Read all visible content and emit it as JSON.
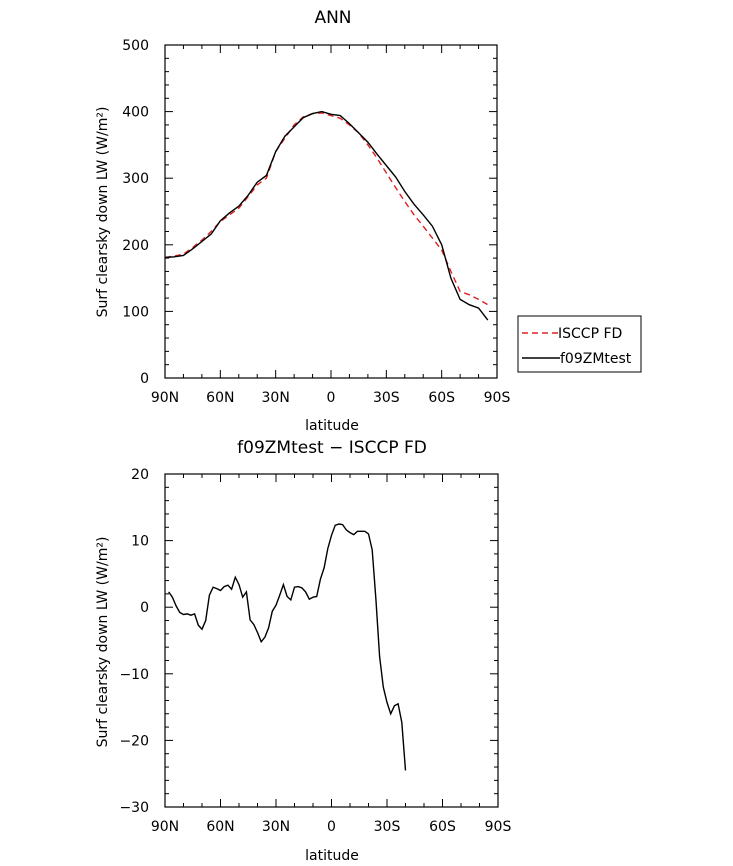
{
  "chart_data": [
    {
      "type": "line",
      "title": "ANN",
      "xlabel": "latitude",
      "ylabel": "Surf clearsky down LW (W/m²)",
      "xlim": [
        -90,
        90
      ],
      "ylim": [
        0,
        500
      ],
      "xticks": [
        -90,
        -60,
        -30,
        0,
        30,
        60,
        90
      ],
      "xtick_labels": [
        "90N",
        "60N",
        "30N",
        "0",
        "30S",
        "60S",
        "90S"
      ],
      "yticks": [
        0,
        100,
        200,
        300,
        400,
        500
      ],
      "ytick_labels": [
        "0",
        "100",
        "200",
        "300",
        "400",
        "500"
      ],
      "x": [
        -90,
        -85,
        -80,
        -75,
        -70,
        -65,
        -60,
        -55,
        -50,
        -45,
        -40,
        -35,
        -30,
        -25,
        -20,
        -15,
        -10,
        -5,
        0,
        5,
        10,
        15,
        20,
        25,
        30,
        35,
        40,
        45,
        50,
        55,
        60,
        65,
        70,
        75,
        80,
        85,
        90
      ],
      "series": [
        {
          "name": "ISCCP FD",
          "color": "#e02020",
          "dash": "dashed",
          "values": [
            181,
            183,
            186,
            196,
            207,
            220,
            235,
            245,
            255,
            272,
            290,
            300,
            340,
            360,
            380,
            392,
            397,
            398,
            394,
            390,
            380,
            368,
            350,
            330,
            308,
            286,
            265,
            245,
            228,
            210,
            192,
            160,
            130,
            125,
            118,
            110,
            null
          ]
        },
        {
          "name": "f09ZMtest",
          "color": "#000000",
          "dash": "solid",
          "values": [
            181,
            182,
            184,
            194,
            205,
            216,
            236,
            248,
            258,
            274,
            294,
            304,
            340,
            363,
            377,
            391,
            397,
            400,
            396,
            394,
            382,
            368,
            354,
            336,
            319,
            302,
            280,
            261,
            245,
            228,
            200,
            150,
            118,
            110,
            105,
            87,
            null
          ]
        }
      ],
      "legend": "right"
    },
    {
      "type": "line",
      "title": "f09ZMtest − ISCCP FD",
      "xlabel": "latitude",
      "ylabel": "Surf clearsky down LW (W/m²)",
      "xlim": [
        -90,
        90
      ],
      "ylim": [
        -30,
        20
      ],
      "xticks": [
        -90,
        -60,
        -30,
        0,
        30,
        60,
        90
      ],
      "xtick_labels": [
        "90N",
        "60N",
        "30N",
        "0",
        "30S",
        "60S",
        "90S"
      ],
      "yticks": [
        -30,
        -20,
        -10,
        0,
        10,
        20
      ],
      "ytick_labels": [
        "−30",
        "−20",
        "−10",
        "0",
        "10",
        "20"
      ],
      "x": [
        -88,
        -86,
        -84,
        -82,
        -80,
        -78,
        -76,
        -74,
        -72,
        -70,
        -68,
        -66,
        -64,
        -62,
        -60,
        -58,
        -56,
        -54,
        -52,
        -50,
        -48,
        -46,
        -44,
        -42,
        -40,
        -38,
        -36,
        -34,
        -32,
        -30,
        -28,
        -26,
        -24,
        -22,
        -20,
        -18,
        -16,
        -14,
        -12,
        -10,
        -8,
        -6,
        -4,
        -2,
        0,
        2,
        4,
        6,
        8,
        10,
        12,
        14,
        16,
        18,
        20,
        22,
        24,
        26,
        28,
        30,
        32,
        34,
        36,
        38,
        40,
        42,
        44,
        46,
        48,
        50,
        52,
        54,
        56,
        58,
        60,
        62,
        64,
        66,
        68,
        70,
        72,
        74,
        76,
        78,
        80,
        82,
        84,
        86,
        88
      ],
      "series": [
        {
          "name": "",
          "color": "#000000",
          "dash": "solid",
          "values": [
            2.3,
            1.5,
            0.2,
            -0.8,
            -1.1,
            -1.0,
            -1.2,
            -1.0,
            -2.7,
            -3.3,
            -2.0,
            1.8,
            3.0,
            2.8,
            2.5,
            3.1,
            3.3,
            2.7,
            4.5,
            3.4,
            1.5,
            2.3,
            -1.9,
            -2.6,
            -3.8,
            -5.2,
            -4.5,
            -3.1,
            -0.6,
            0.3,
            1.8,
            3.4,
            1.6,
            1.1,
            3.0,
            3.1,
            2.9,
            2.3,
            1.2,
            1.5,
            1.6,
            4.2,
            5.9,
            8.8,
            10.8,
            12.3,
            12.5,
            12.4,
            11.6,
            11.2,
            10.9,
            11.4,
            11.4,
            11.4,
            11.0,
            8.6,
            1.2,
            -7.4,
            -12.0,
            -14.3,
            -16.0,
            -14.8,
            -14.5,
            -17.3,
            -24.5,
            null,
            null,
            null,
            null,
            null,
            null,
            null,
            null,
            null,
            null,
            null,
            null,
            null,
            null,
            null,
            null,
            null,
            null,
            null,
            null,
            null,
            null,
            null,
            null
          ]
        }
      ]
    }
  ]
}
